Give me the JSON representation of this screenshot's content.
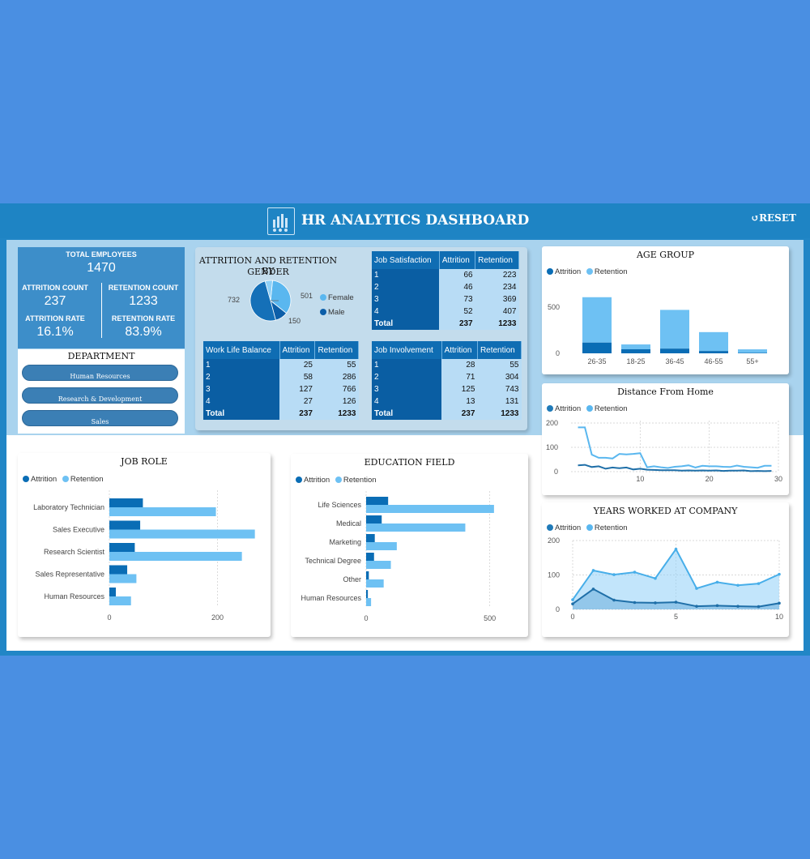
{
  "header": {
    "title": "HR ANALYTICS DASHBOARD",
    "reset_label": "RESET"
  },
  "colors": {
    "attrition": "#0a6db5",
    "retention": "#6ec1f3",
    "panel": "#a9d3ee"
  },
  "kpis": {
    "total_employees": {
      "label": "TOTAL EMPLOYEES",
      "value": "1470"
    },
    "attrition_count": {
      "label": "ATTRITION COUNT",
      "value": "237"
    },
    "retention_count": {
      "label": "RETENTION COUNT",
      "value": "1233"
    },
    "attrition_rate": {
      "label": "ATTRITION RATE",
      "value": "16.1%"
    },
    "retention_rate": {
      "label": "RETENTION RATE",
      "value": "83.9%"
    }
  },
  "department": {
    "title": "DEPARTMENT",
    "items": [
      "Human Resources",
      "Research & Development",
      "Sales"
    ]
  },
  "gender": {
    "title_line1": "ATTRITION AND RETENTION BY",
    "title_line2": "GENDER",
    "legend": [
      "Female",
      "Male"
    ]
  },
  "tables": {
    "job_satisfaction": {
      "headers": [
        "Job Satisfaction",
        "Attrition",
        "Retention"
      ],
      "rows": [
        [
          "1",
          "66",
          "223"
        ],
        [
          "2",
          "46",
          "234"
        ],
        [
          "3",
          "73",
          "369"
        ],
        [
          "4",
          "52",
          "407"
        ]
      ],
      "total": [
        "Total",
        "237",
        "1233"
      ]
    },
    "work_life_balance": {
      "headers": [
        "Work Life Balance",
        "Attrition",
        "Retention"
      ],
      "rows": [
        [
          "1",
          "25",
          "55"
        ],
        [
          "2",
          "58",
          "286"
        ],
        [
          "3",
          "127",
          "766"
        ],
        [
          "4",
          "27",
          "126"
        ]
      ],
      "total": [
        "Total",
        "237",
        "1233"
      ]
    },
    "job_involvement": {
      "headers": [
        "Job Involvement",
        "Attrition",
        "Retention"
      ],
      "rows": [
        [
          "1",
          "28",
          "55"
        ],
        [
          "2",
          "71",
          "304"
        ],
        [
          "3",
          "125",
          "743"
        ],
        [
          "4",
          "13",
          "131"
        ]
      ],
      "total": [
        "Total",
        "237",
        "1233"
      ]
    }
  },
  "legend": {
    "attrition": "Attrition",
    "retention": "Retention"
  },
  "chart_data": [
    {
      "id": "gender_pie",
      "type": "pie",
      "title": "ATTRITION AND RETENTION BY GENDER",
      "slices": [
        {
          "label": "501",
          "value": 501
        },
        {
          "label": "150",
          "value": 150
        },
        {
          "label": "732",
          "value": 732
        },
        {
          "label": "",
          "value": 87
        }
      ],
      "legend": [
        "Female",
        "Male"
      ]
    },
    {
      "id": "age_group",
      "type": "bar",
      "title": "AGE GROUP",
      "categories": [
        "26-35",
        "18-25",
        "36-45",
        "46-55",
        "55+"
      ],
      "series": [
        {
          "name": "Attrition",
          "values": [
            116,
            44,
            51,
            25,
            5
          ]
        },
        {
          "name": "Retention",
          "values": [
            490,
            52,
            418,
            204,
            38
          ]
        }
      ],
      "yticks": [
        "0",
        "500"
      ],
      "ylim": [
        0,
        700
      ],
      "stacked": true
    },
    {
      "id": "distance_from_home",
      "type": "line",
      "title": "Distance From Home",
      "x": [
        1,
        2,
        3,
        4,
        5,
        6,
        7,
        8,
        9,
        10,
        11,
        12,
        13,
        14,
        15,
        16,
        17,
        18,
        19,
        20,
        21,
        22,
        23,
        24,
        25,
        26,
        27,
        28,
        29
      ],
      "series": [
        {
          "name": "Retention",
          "values": [
            182,
            182,
            70,
            57,
            57,
            54,
            73,
            71,
            73,
            76,
            18,
            22,
            18,
            15,
            20,
            22,
            26,
            17,
            24,
            22,
            22,
            20,
            19,
            25,
            20,
            18,
            16,
            24,
            24
          ]
        },
        {
          "name": "Attrition",
          "values": [
            26,
            28,
            19,
            22,
            12,
            17,
            14,
            17,
            9,
            12,
            8,
            7,
            6,
            6,
            6,
            4,
            5,
            4,
            5,
            4,
            5,
            3,
            4,
            4,
            5,
            2,
            3,
            2,
            3
          ]
        }
      ],
      "xticks": [
        "10",
        "20",
        "30"
      ],
      "yticks": [
        "0",
        "100",
        "200"
      ],
      "xlim": [
        0,
        30
      ],
      "ylim": [
        0,
        210
      ]
    },
    {
      "id": "years_at_company",
      "type": "area",
      "title": "YEARS WORKED AT COMPANY",
      "x": [
        0,
        1,
        2,
        3,
        4,
        5,
        6,
        7,
        8,
        9,
        10
      ],
      "series": [
        {
          "name": "Retention",
          "values": [
            28,
            113,
            101,
            108,
            90,
            175,
            61,
            79,
            70,
            75,
            102
          ]
        },
        {
          "name": "Attrition",
          "values": [
            16,
            59,
            27,
            20,
            19,
            21,
            9,
            11,
            9,
            8,
            18
          ]
        }
      ],
      "xticks": [
        "0",
        "5",
        "10"
      ],
      "yticks": [
        "0",
        "100",
        "200"
      ],
      "xlim": [
        0,
        10
      ],
      "ylim": [
        0,
        200
      ]
    },
    {
      "id": "job_role",
      "type": "bar",
      "orientation": "horizontal",
      "title": "JOB ROLE",
      "categories": [
        "Laboratory Technician",
        "Sales Executive",
        "Research Scientist",
        "Sales Representative",
        "Human Resources"
      ],
      "series": [
        {
          "name": "Attrition",
          "values": [
            62,
            57,
            47,
            33,
            12
          ]
        },
        {
          "name": "Retention",
          "values": [
            197,
            269,
            245,
            50,
            40
          ]
        }
      ],
      "xticks": [
        "0",
        "200"
      ],
      "xlim": [
        0,
        280
      ]
    },
    {
      "id": "education_field",
      "type": "bar",
      "orientation": "horizontal",
      "title": "EDUCATION FIELD",
      "categories": [
        "Life Sciences",
        "Medical",
        "Marketing",
        "Technical Degree",
        "Other",
        "Human Resources"
      ],
      "series": [
        {
          "name": "Attrition",
          "values": [
            89,
            63,
            35,
            32,
            11,
            7
          ]
        },
        {
          "name": "Retention",
          "values": [
            517,
            401,
            124,
            100,
            71,
            20
          ]
        }
      ],
      "xticks": [
        "0",
        "500"
      ],
      "xlim": [
        0,
        560
      ]
    }
  ]
}
